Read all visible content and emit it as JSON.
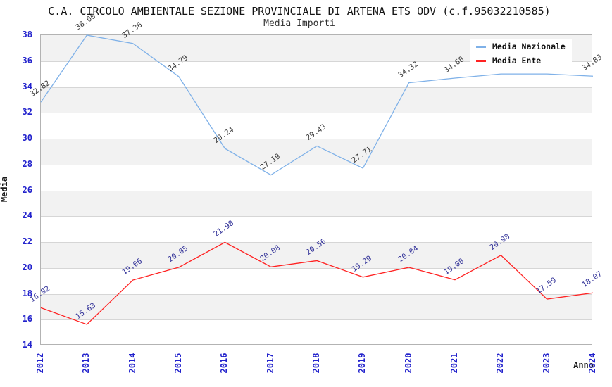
{
  "header": {
    "title": "C.A. CIRCOLO AMBIENTALE SEZIONE PROVINCIALE DI ARTENA ETS ODV (c.f.95032210585)",
    "subtitle": "Media Importi"
  },
  "colors": {
    "nazionale_line": "#7fb1e8",
    "ente_line": "#ff2222",
    "axis_tick_label": "#2222cc",
    "nazionale_value_label": "#3a3a3a",
    "ente_value_label": "#333399",
    "band": "#f2f2f2",
    "gridline": "#d6d6d6",
    "plot_border": "#b3b3b3",
    "axis_title": "#1a1a1a"
  },
  "legend": {
    "items": [
      {
        "label": "Media Nazionale",
        "color": "#7fb1e8"
      },
      {
        "label": "Media Ente",
        "color": "#ff2222"
      }
    ]
  },
  "chart_data": {
    "type": "line",
    "title": "C.A. CIRCOLO AMBIENTALE SEZIONE PROVINCIALE DI ARTENA ETS ODV (c.f.95032210585)",
    "subtitle": "Media Importi",
    "xlabel": "Anno",
    "ylabel": "Media",
    "x": [
      2012,
      2013,
      2014,
      2015,
      2016,
      2017,
      2018,
      2019,
      2020,
      2021,
      2022,
      2023,
      2024
    ],
    "series": [
      {
        "name": "Media Nazionale",
        "color": "#7fb1e8",
        "values": [
          32.82,
          38.0,
          37.36,
          34.79,
          29.24,
          27.19,
          29.43,
          27.71,
          34.32,
          34.68,
          35.0,
          35.0,
          34.83
        ],
        "point_labels": [
          "32.82",
          "38.00",
          "37.36",
          "34.79",
          "29.24",
          "27.19",
          "29.43",
          "27.71",
          "34.32",
          "34.68",
          "",
          "",
          "34.83"
        ],
        "label_color": "#3a3a3a"
      },
      {
        "name": "Media Ente",
        "color": "#ff2222",
        "values": [
          16.92,
          15.63,
          19.06,
          20.05,
          21.98,
          20.08,
          20.56,
          19.29,
          20.04,
          19.08,
          20.98,
          17.59,
          18.07
        ],
        "point_labels": [
          "16.92",
          "15.63",
          "19.06",
          "20.05",
          "21.98",
          "20.08",
          "20.56",
          "19.29",
          "20.04",
          "19.08",
          "20.98",
          "17.59",
          "18.07"
        ],
        "label_color": "#333399"
      }
    ],
    "ylim": [
      14,
      38
    ],
    "ytick_step": 2,
    "grid": "horizontal-bands-alternating",
    "legend_position": "top-right"
  }
}
